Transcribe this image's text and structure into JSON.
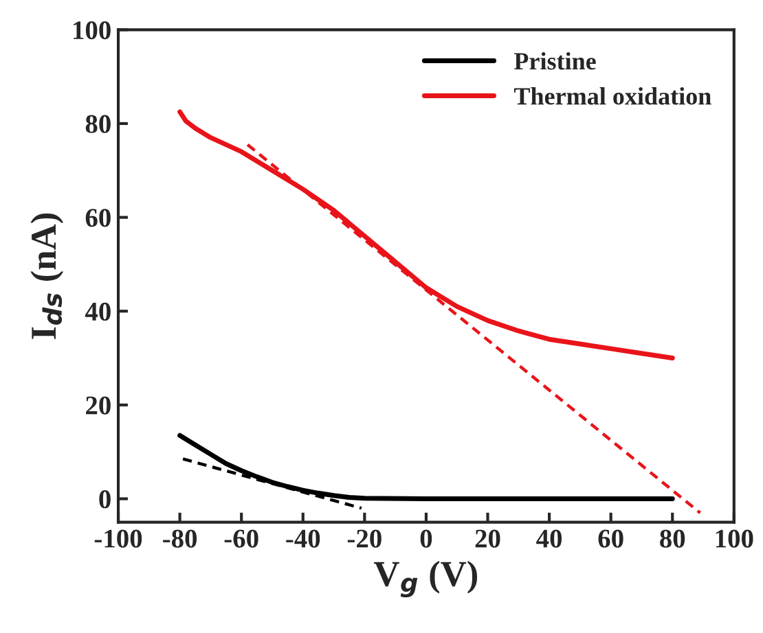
{
  "chart_data": {
    "type": "line",
    "xlabel": "V$_{g}$ (V)",
    "ylabel": "I$_{ds}$ (nA)",
    "xlim": [
      -100,
      100
    ],
    "xticks": [
      -100,
      -80,
      -60,
      -40,
      -20,
      0,
      20,
      40,
      60,
      80,
      100
    ],
    "ylim": [
      -5,
      100
    ],
    "yticks": [
      0,
      20,
      40,
      60,
      80,
      100
    ],
    "grid": false,
    "legend": "top right",
    "marker": "none",
    "series": [
      {
        "name": "Pristine",
        "color": "#000000",
        "line_style": "solid",
        "x": [
          -80,
          -75,
          -70,
          -65,
          -60,
          -55,
          -50,
          -45,
          -40,
          -35,
          -30,
          -25,
          -20,
          0,
          40,
          80
        ],
        "values": [
          13.5,
          11.5,
          9.5,
          7.5,
          6,
          4.7,
          3.5,
          2.6,
          1.8,
          1.2,
          0.7,
          0.3,
          0.1,
          0,
          0,
          0
        ]
      },
      {
        "name": "Thermal oxidation",
        "color": "#e8141a",
        "line_style": "solid",
        "x": [
          -80,
          -78,
          -75,
          -70,
          -60,
          -50,
          -40,
          -30,
          -20,
          -10,
          0,
          10,
          20,
          30,
          40,
          50,
          60,
          70,
          80
        ],
        "values": [
          82.5,
          80.5,
          79,
          77,
          74,
          70,
          66,
          61.5,
          56,
          50.5,
          45,
          41,
          38,
          35.8,
          34,
          33,
          32,
          31,
          30
        ]
      },
      {
        "color": "#000000",
        "line_style": "dashed",
        "x": [
          -79,
          -21
        ],
        "values": [
          8.5,
          -2
        ]
      },
      {
        "color": "#e8141a",
        "line_style": "dashed",
        "x": [
          -58,
          89
        ],
        "values": [
          75.5,
          -3
        ]
      }
    ]
  }
}
